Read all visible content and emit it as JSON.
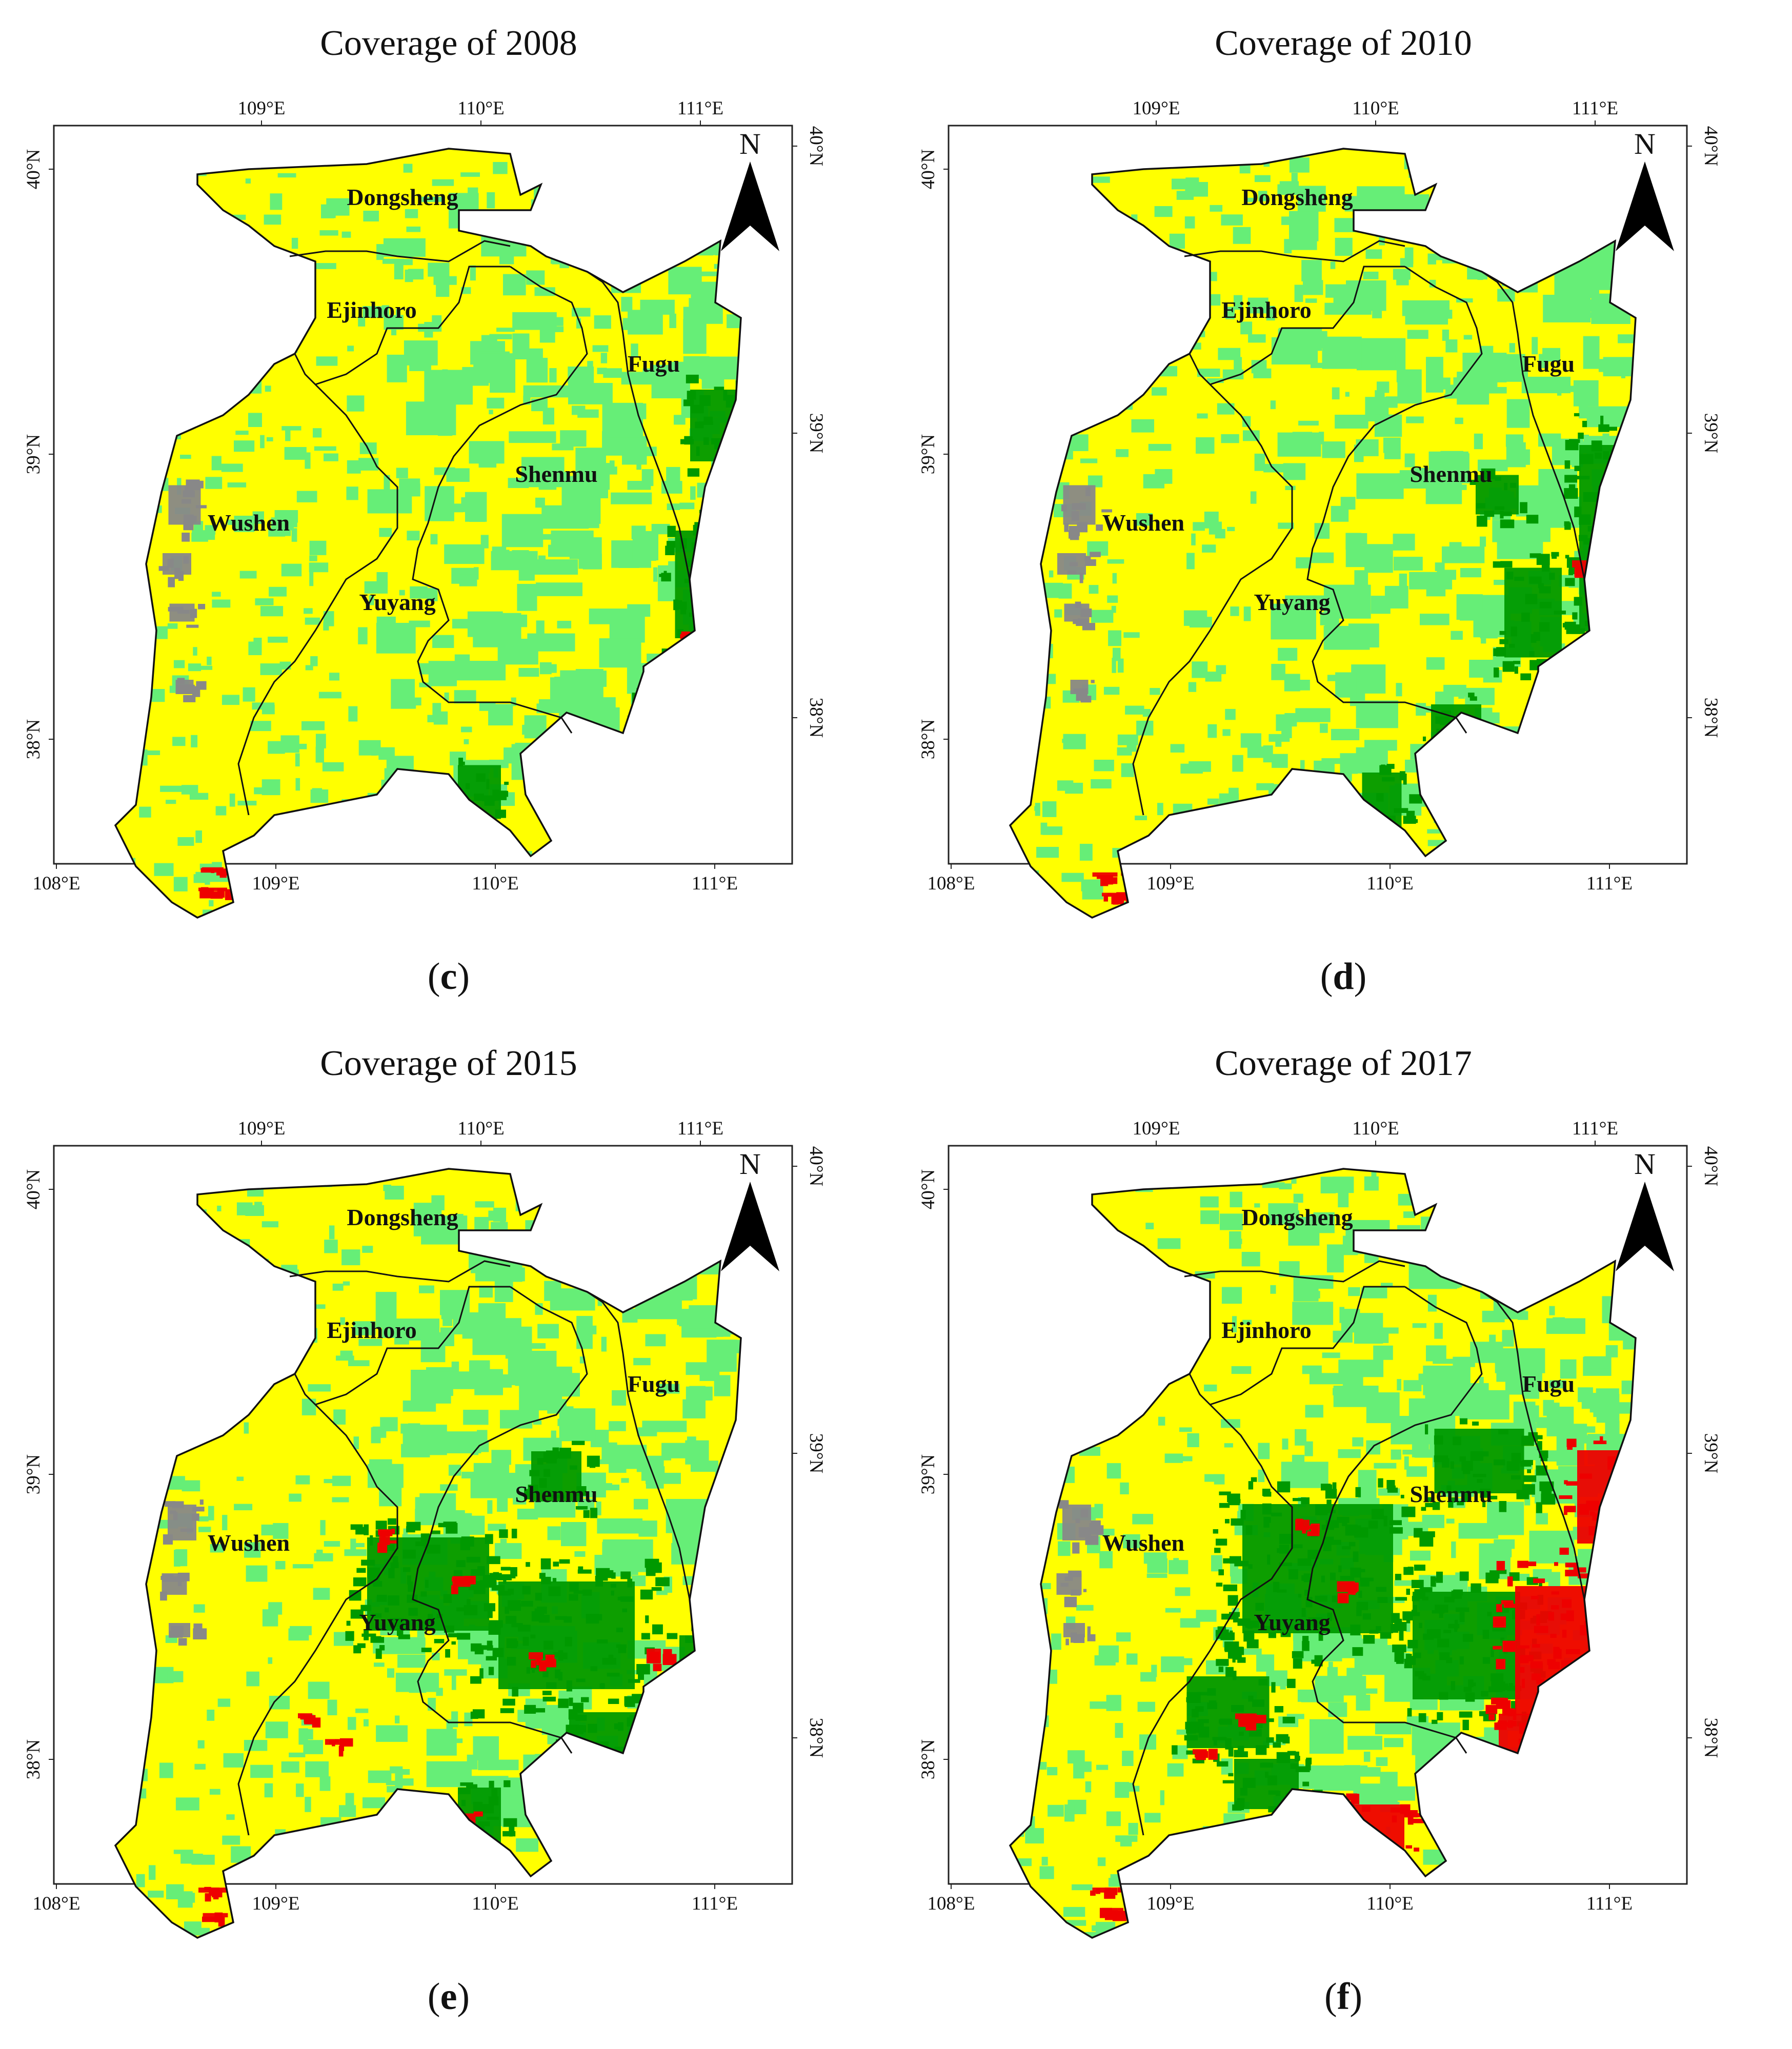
{
  "panels": [
    {
      "title": "Coverage of 2008",
      "caption_letter": "c",
      "patches": {
        "dark_green": [
          [
            1270,
            820,
            210,
            300
          ],
          [
            1200,
            1120,
            240,
            180
          ],
          [
            1310,
            560,
            140,
            200
          ],
          [
            860,
            1300,
            120,
            150
          ],
          [
            820,
            1420,
            110,
            80
          ]
        ],
        "red": [
          [
            1400,
            740,
            18,
            30
          ],
          [
            1310,
            1060,
            24,
            12
          ],
          [
            370,
            1520,
            60,
            12
          ],
          [
            360,
            1560,
            80,
            10
          ]
        ],
        "grey": [
          [
            300,
            760,
            90,
            110
          ],
          [
            290,
            900,
            80,
            60
          ],
          [
            305,
            1000,
            70,
            50
          ],
          [
            320,
            1150,
            50,
            40
          ]
        ]
      }
    },
    {
      "title": "Coverage of 2010",
      "caption_letter": "d",
      "patches": {
        "dark_green": [
          [
            1290,
            620,
            200,
            520
          ],
          [
            1150,
            900,
            160,
            250
          ],
          [
            1010,
            1180,
            140,
            160
          ],
          [
            880,
            1310,
            110,
            180
          ],
          [
            1100,
            740,
            120,
            110
          ]
        ],
        "red": [
          [
            1300,
            920,
            40,
            20
          ],
          [
            1400,
            770,
            16,
            24
          ],
          [
            800,
            1420,
            50,
            20
          ],
          [
            360,
            1530,
            70,
            12
          ],
          [
            380,
            1570,
            60,
            10
          ]
        ],
        "grey": [
          [
            300,
            760,
            90,
            110
          ],
          [
            290,
            900,
            80,
            60
          ],
          [
            305,
            1000,
            70,
            50
          ],
          [
            320,
            1150,
            50,
            40
          ]
        ]
      }
    },
    {
      "title": "Coverage of 2015",
      "caption_letter": "e",
      "patches": {
        "dark_green": [
          [
            650,
            800,
            340,
            260
          ],
          [
            900,
            880,
            380,
            300
          ],
          [
            1050,
            1150,
            300,
            200
          ],
          [
            1280,
            1000,
            200,
            200
          ],
          [
            860,
            1300,
            120,
            180
          ],
          [
            1000,
            650,
            140,
            140
          ]
        ],
        "red": [
          [
            720,
            820,
            30,
            40
          ],
          [
            860,
            910,
            50,
            30
          ],
          [
            1240,
            1050,
            40,
            40
          ],
          [
            870,
            1370,
            50,
            50
          ],
          [
            610,
            1230,
            60,
            16
          ],
          [
            560,
            1180,
            40,
            14
          ],
          [
            360,
            1520,
            80,
            14
          ],
          [
            370,
            1570,
            70,
            12
          ],
          [
            1010,
            1060,
            40,
            20
          ]
        ],
        "grey": [
          [
            300,
            760,
            80,
            100
          ],
          [
            290,
            900,
            70,
            60
          ],
          [
            305,
            1000,
            60,
            40
          ]
        ]
      }
    },
    {
      "title": "Coverage of 2017",
      "caption_letter": "f",
      "patches": {
        "dark_green": [
          [
            600,
            720,
            420,
            360
          ],
          [
            950,
            900,
            300,
            300
          ],
          [
            520,
            1080,
            230,
            200
          ],
          [
            1000,
            600,
            250,
            180
          ],
          [
            620,
            1250,
            180,
            140
          ]
        ],
        "red": [
          [
            1280,
            630,
            240,
            260
          ],
          [
            1150,
            880,
            300,
            360
          ],
          [
            1130,
            1150,
            220,
            220
          ],
          [
            1050,
            1300,
            120,
            140
          ],
          [
            860,
            1330,
            140,
            200
          ],
          [
            760,
            800,
            40,
            30
          ],
          [
            840,
            920,
            50,
            30
          ],
          [
            640,
            1180,
            60,
            16
          ],
          [
            560,
            1250,
            40,
            14
          ],
          [
            360,
            1520,
            70,
            14
          ],
          [
            380,
            1560,
            60,
            12
          ]
        ],
        "grey": [
          [
            300,
            760,
            80,
            100
          ],
          [
            290,
            900,
            70,
            60
          ],
          [
            305,
            1000,
            60,
            40
          ]
        ]
      }
    }
  ],
  "map": {
    "top_lon_labels": [
      "109°E",
      "110°E",
      "111°E"
    ],
    "bottom_lon_labels": [
      "108°E",
      "109°E",
      "110°E",
      "111°E"
    ],
    "left_lat_labels": [
      "40°N",
      "39°N",
      "38°N"
    ],
    "right_lat_labels": [
      "40°N",
      "39°N",
      "38°N"
    ],
    "north_label": "N",
    "regions": [
      "Dongsheng",
      "Ejinhoro",
      "Fugu",
      "Shenmu",
      "Wushen",
      "Yuyang"
    ]
  },
  "colors": {
    "yellow": "#ffff00",
    "light_green": "#66ee77",
    "dark_green": "#009900",
    "red": "#ee0000",
    "grey": "#888888"
  }
}
